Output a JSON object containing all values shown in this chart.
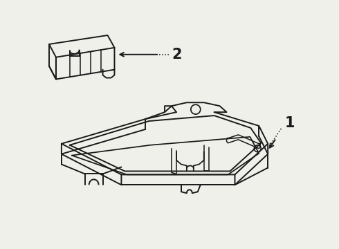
{
  "bg_color": "#f0f0eb",
  "line_color": "#1a1a1a",
  "label1": "1",
  "label2": "2",
  "lw": 1.4
}
